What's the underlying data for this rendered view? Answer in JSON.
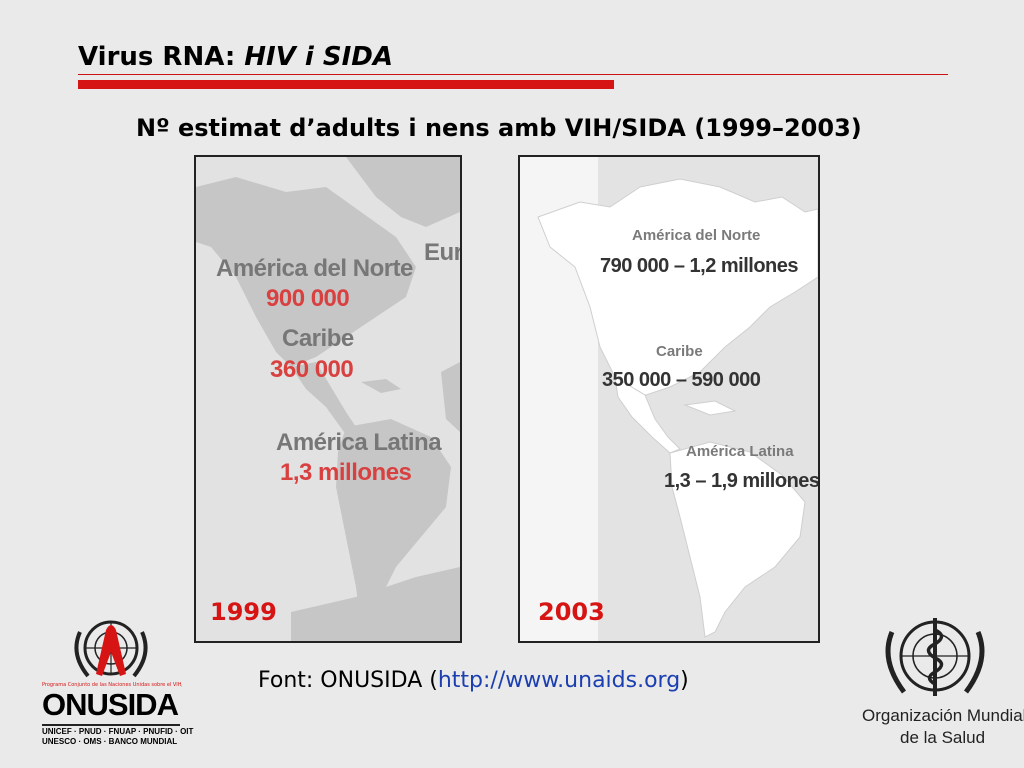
{
  "slide": {
    "title_main": "Virus RNA: ",
    "title_italic": "HIV i SIDA",
    "subtitle": "Nº estimat d’adults i nens amb VIH/SIDA (1999–2003)"
  },
  "map_1999": {
    "year": "1999",
    "europe_fragment": "Eur",
    "north_america_label": "América del Norte",
    "north_america_value": "900 000",
    "caribbean_label": "Caribe",
    "caribbean_value": "360 000",
    "latin_america_label": "América Latina",
    "latin_america_value": "1,3 millones"
  },
  "map_2003": {
    "year": "2003",
    "north_america_label": "América del Norte",
    "north_america_value": "790 000 – 1,2 millones",
    "caribbean_label": "Caribe",
    "caribbean_value": "350 000 – 590 000",
    "latin_america_label": "América Latina",
    "latin_america_value": "1,3 – 1,9 millones"
  },
  "source": {
    "prefix": "Font: ONUSIDA (",
    "url": "http://www.unaids.org",
    "suffix": ")"
  },
  "logos": {
    "onusida_name": "ONUSIDA",
    "onusida_line1": "UNICEF · PNUD · FNUAP · PNUFID · OIT",
    "onusida_line2": "UNESCO · OMS · BANCO MUNDIAL",
    "onusida_tagline": "Programa Conjunto de las Naciones Unidas sobre el VIH/SIDA",
    "oms_line1": "Organización Mundial",
    "oms_line2": "de la Salud"
  },
  "colors": {
    "accent_red": "#d71414",
    "value_red": "#d94040",
    "link_blue": "#1b3fb0",
    "background": "#eaeaea"
  }
}
